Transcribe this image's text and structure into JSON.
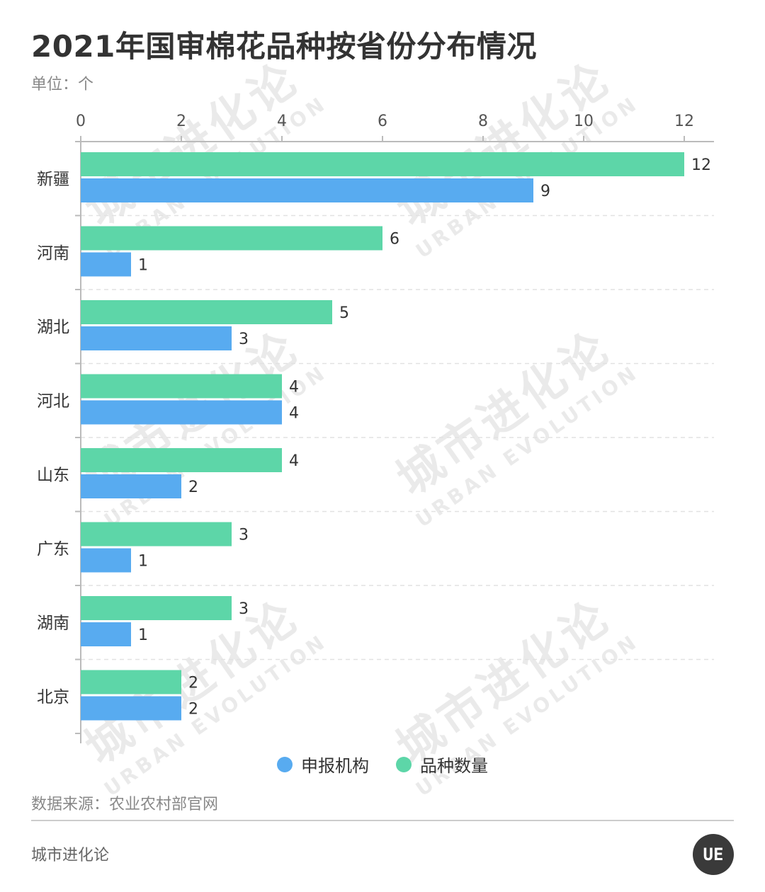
{
  "title": "2021年国审棉花品种按省份分布情况",
  "unit": {
    "label": "单位：",
    "value": "个"
  },
  "source": "数据来源：农业农村部官网",
  "brand": "城市进化论",
  "logo_text": "UE",
  "watermark": {
    "cn": "城市进化论",
    "en": "URBAN EVOLUTION"
  },
  "colors": {
    "series_varieties": "#5dd6a8",
    "series_institutions": "#58abf0",
    "axis": "#bbbbbb",
    "grid": "#e2e2e2",
    "text": "#333333",
    "muted": "#888888"
  },
  "chart_data": {
    "type": "bar",
    "orientation": "horizontal",
    "title": "2021年国审棉花品种按省份分布情况",
    "categories": [
      "新疆",
      "河南",
      "湖北",
      "河北",
      "山东",
      "广东",
      "湖南",
      "北京"
    ],
    "series": [
      {
        "name": "品种数量",
        "values": [
          12,
          6,
          5,
          4,
          4,
          3,
          3,
          2
        ]
      },
      {
        "name": "申报机构",
        "values": [
          9,
          1,
          3,
          4,
          2,
          1,
          1,
          2
        ]
      }
    ],
    "xlim": [
      0,
      12
    ],
    "xticks": [
      0,
      2,
      4,
      6,
      8,
      10,
      12
    ],
    "axis_position": "top",
    "grid": true,
    "legend_position": "bottom-center",
    "legend_order": [
      "申报机构",
      "品种数量"
    ]
  }
}
